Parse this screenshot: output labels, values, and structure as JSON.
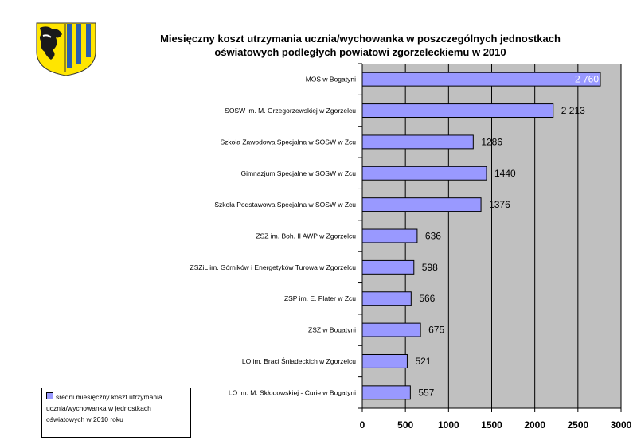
{
  "title_line1": "Miesięczny koszt utrzymania ucznia/wychowanka w poszczególnych jednostkach",
  "title_line2": "oświatowych podległych powiatowi zgorzeleckiemu w 2010",
  "crest_icon": "coat-of-arms-icon",
  "colors": {
    "bar": "#9999ff",
    "plot_bg": "#c0c0c0",
    "grid": "#000000"
  },
  "chart_data": {
    "type": "bar",
    "orientation": "horizontal",
    "categories": [
      "MOS w Bogatyni",
      "SOSW im. M. Grzegorzewskiej w Zgorzelcu",
      "Szkoła Zawodowa Specjalna w SOSW w Zcu",
      "Gimnazjum Specjalne w SOSW w Zcu",
      "Szkoła Podstawowa Specjalna w SOSW w Zcu",
      "ZSZ im. Boh. II AWP w Zgorzelcu",
      "ZSZiL im. Górników i Energetyków Turowa w Zgorzelcu",
      "ZSP im. E. Plater w Zcu",
      "ZSZ w Bogatyni",
      "LO im. Braci Śniadeckich w Zgorzelcu",
      "LO im. M. Skłodowskiej - Curie w Bogatyni"
    ],
    "values": [
      2760,
      2213,
      1286,
      1440,
      1376,
      636,
      598,
      566,
      675,
      521,
      557
    ],
    "value_labels": [
      "2 760",
      "2 213",
      "1286",
      "1440",
      "1376",
      "636",
      "598",
      "566",
      "675",
      "521",
      "557"
    ],
    "series": [
      {
        "name": "średni miesięczny koszt utrzymania ucznia/wychowanka w jednostkach oświatowych w 2010 roku"
      }
    ],
    "xlim": [
      0,
      3000
    ],
    "xticks": [
      0,
      500,
      1000,
      1500,
      2000,
      2500,
      3000
    ],
    "xtick_labels": [
      "0",
      "500",
      "1000",
      "1500",
      "2000",
      "2500",
      "3000"
    ],
    "grid": "vertical",
    "legend_position": "bottom-left"
  }
}
